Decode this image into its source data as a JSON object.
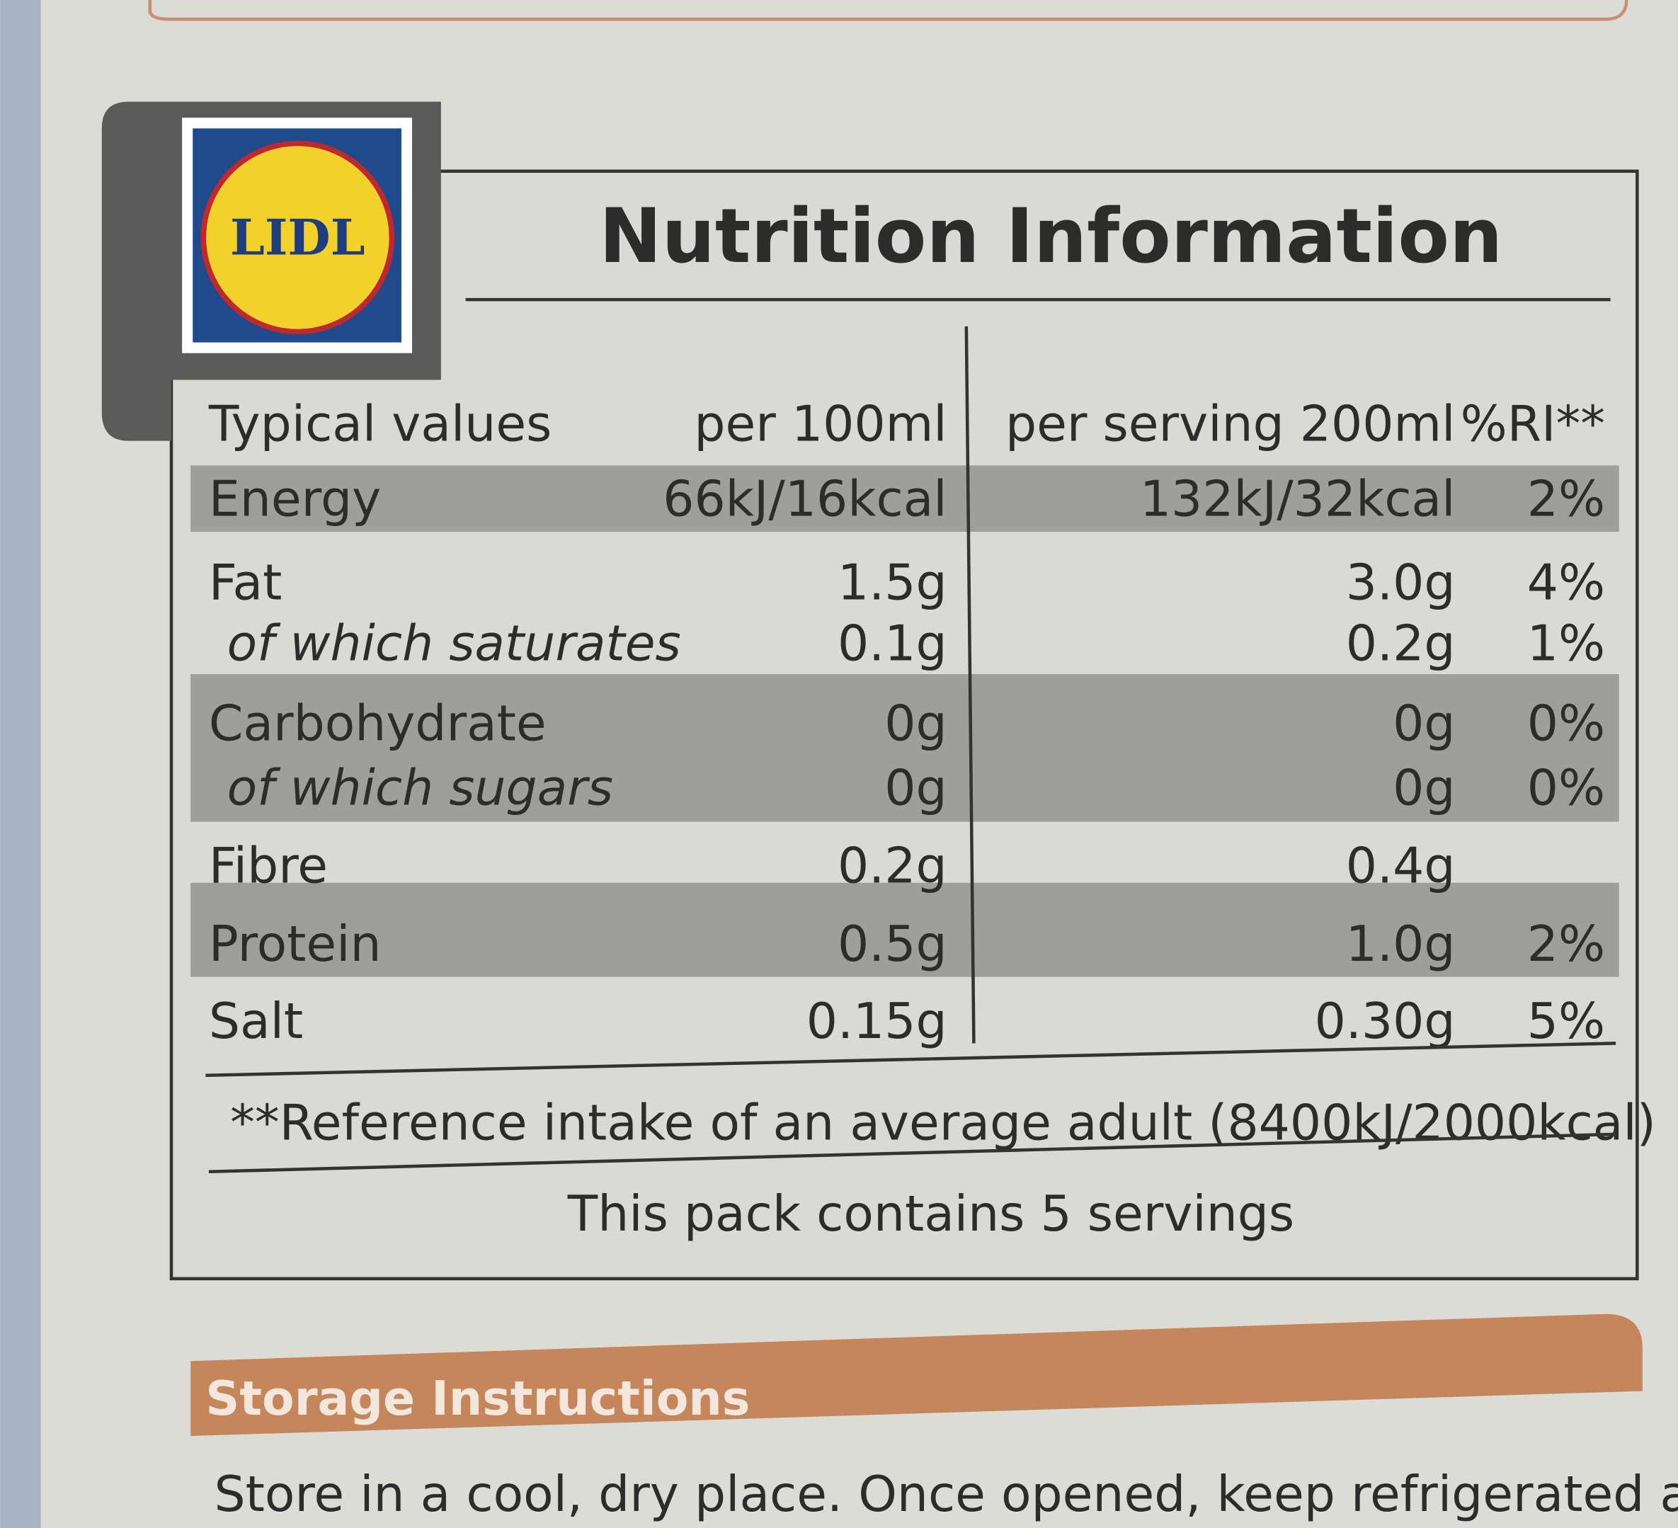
{
  "logo": "LIDL",
  "title": "Nutrition Information",
  "table": {
    "header": [
      "Typical values",
      "per 100ml",
      "per serving 200ml",
      "%RI**"
    ],
    "rows": [
      [
        "Energy",
        "66kJ/16kcal",
        "132kJ/32kcal",
        "2%"
      ],
      [
        "Fat",
        "1.5g",
        "3.0g",
        "4%"
      ],
      [
        "of which saturates",
        "0.1g",
        "0.2g",
        "1%"
      ],
      [
        "Carbohydrate",
        "0g",
        "0g",
        "0%"
      ],
      [
        "of which sugars",
        "0g",
        "0g",
        "0%"
      ],
      [
        "Fibre",
        "0.2g",
        "0.4g",
        null
      ],
      [
        "Protein",
        "0.5g",
        "1.0g",
        "2%"
      ],
      [
        "Salt",
        "0.15g",
        "0.30g",
        "5%"
      ]
    ]
  },
  "footnote": "**Reference intake of an average adult (8400kJ/2000kcal)",
  "servings": "This pack contains 5 servings",
  "storage": {
    "title": "Storage Instructions",
    "text": "Store in a cool, dry place. Once opened, keep refrigerated and"
  }
}
